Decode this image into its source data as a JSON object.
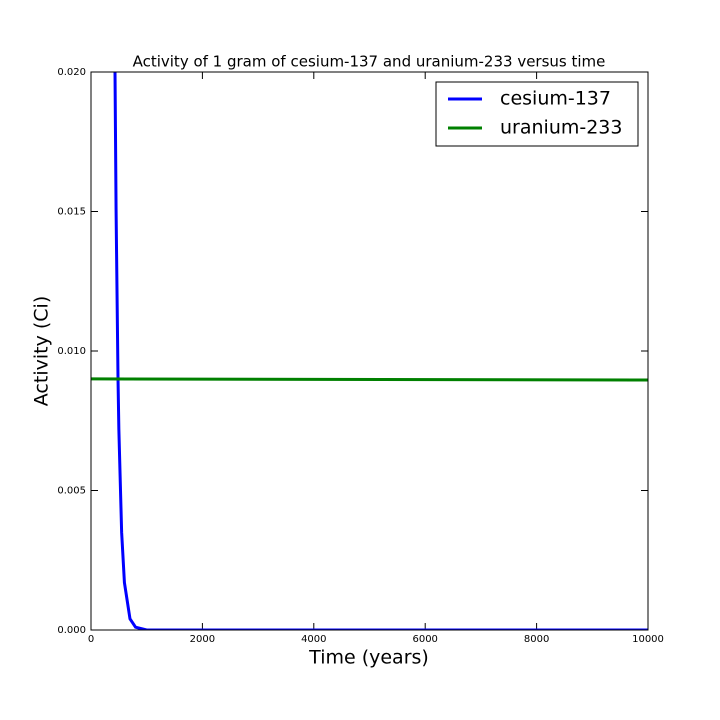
{
  "chart_data": {
    "type": "line",
    "title": "Activity of 1 gram of cesium-137 and uranium-233 versus time",
    "xlabel": "Time (years)",
    "ylabel": "Activity (Ci)",
    "series": [
      {
        "name": "cesium-137",
        "color": "#0000ff",
        "x": [
          431,
          450,
          485,
          500,
          550,
          600,
          700,
          800,
          1000,
          10000
        ],
        "values": [
          0.02,
          0.0151,
          0.009,
          0.0072,
          0.0035,
          0.0017,
          0.0004,
          0.0001,
          0,
          0
        ]
      },
      {
        "name": "uranium-233",
        "color": "#008000",
        "x": [
          0,
          10000
        ],
        "values": [
          0.009,
          0.00896
        ]
      }
    ],
    "xlim": [
      0,
      10000
    ],
    "xticks": [
      0,
      2000,
      4000,
      6000,
      8000,
      10000
    ],
    "ylim": [
      0,
      0.02
    ],
    "yticks": [
      {
        "value": 0,
        "label": "0.000"
      },
      0.005,
      {
        "value": 0.01,
        "label": "0.010"
      },
      0.015,
      {
        "value": 0.02,
        "label": "0.020"
      }
    ],
    "legend": "upper right"
  }
}
